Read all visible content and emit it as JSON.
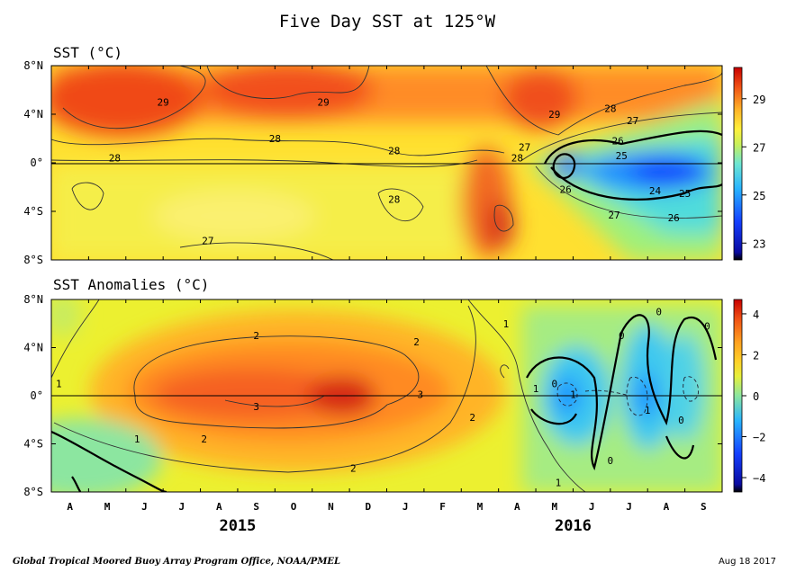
{
  "chart_data": {
    "title": "Five Day SST at 125°W",
    "credit": "Global Tropical Moored Buoy Array Program Office, NOAA/PMEL",
    "date": "Aug 18 2017",
    "x_axis": {
      "months": [
        "A",
        "M",
        "J",
        "J",
        "A",
        "S",
        "O",
        "N",
        "D",
        "J",
        "F",
        "M",
        "A",
        "M",
        "J",
        "J",
        "A",
        "S"
      ],
      "years": [
        {
          "label": "2015",
          "month_index": 4.5
        },
        {
          "label": "2016",
          "month_index": 13.5
        }
      ],
      "range": [
        "2015-04",
        "2016-09"
      ]
    },
    "y_axis": {
      "ticks": [
        "8°N",
        "4°N",
        "0°",
        "4°S",
        "8°S"
      ],
      "values": [
        8,
        4,
        0,
        -4,
        -8
      ],
      "range": [
        -8,
        8
      ]
    },
    "panels": [
      {
        "type": "heatmap",
        "title": "SST (°C)",
        "colorbar": {
          "ticks": [
            "29",
            "27",
            "25",
            "23"
          ],
          "values": [
            29,
            27,
            25,
            23
          ],
          "range": [
            22.3,
            30.3
          ]
        },
        "contour_labels": [
          {
            "text": "29",
            "x": 3.0,
            "y": 5.0
          },
          {
            "text": "29",
            "x": 7.3,
            "y": 5.0
          },
          {
            "text": "29",
            "x": 13.5,
            "y": 4.0
          },
          {
            "text": "28",
            "x": 15.0,
            "y": 4.5
          },
          {
            "text": "27",
            "x": 15.6,
            "y": 3.5
          },
          {
            "text": "28",
            "x": 6.0,
            "y": 2.0
          },
          {
            "text": "28",
            "x": 1.7,
            "y": 0.4
          },
          {
            "text": "28",
            "x": 9.2,
            "y": 1.0
          },
          {
            "text": "28",
            "x": 12.5,
            "y": 0.4
          },
          {
            "text": "27",
            "x": 12.7,
            "y": 1.3
          },
          {
            "text": "26",
            "x": 15.2,
            "y": 1.8
          },
          {
            "text": "25",
            "x": 15.3,
            "y": 0.6
          },
          {
            "text": "26",
            "x": 13.8,
            "y": -2.2
          },
          {
            "text": "24",
            "x": 16.2,
            "y": -2.3
          },
          {
            "text": "25",
            "x": 17.0,
            "y": -2.5
          },
          {
            "text": "26",
            "x": 16.7,
            "y": -4.5
          },
          {
            "text": "27",
            "x": 15.1,
            "y": -4.3
          },
          {
            "text": "28",
            "x": 9.2,
            "y": -3.0
          },
          {
            "text": "27",
            "x": 4.2,
            "y": -6.4
          }
        ]
      },
      {
        "type": "heatmap",
        "title": "SST Anomalies (°C)",
        "colorbar": {
          "ticks": [
            "4",
            "2",
            "0",
            "−2",
            "−4"
          ],
          "values": [
            4,
            2,
            0,
            -2,
            -4
          ],
          "range": [
            -4.7,
            4.7
          ]
        },
        "contour_labels": [
          {
            "text": "1",
            "x": 0.2,
            "y": 1.0
          },
          {
            "text": "1",
            "x": 12.2,
            "y": 6.0
          },
          {
            "text": "2",
            "x": 5.5,
            "y": 5.0
          },
          {
            "text": "2",
            "x": 9.8,
            "y": 4.5
          },
          {
            "text": "3",
            "x": 5.5,
            "y": -0.9
          },
          {
            "text": "3",
            "x": 9.9,
            "y": 0.1
          },
          {
            "text": "2",
            "x": 11.3,
            "y": -1.8
          },
          {
            "text": "2",
            "x": 4.1,
            "y": -3.6
          },
          {
            "text": "1",
            "x": 2.3,
            "y": -3.6
          },
          {
            "text": "2",
            "x": 8.1,
            "y": -6.0
          },
          {
            "text": "1",
            "x": 13.6,
            "y": -7.2
          },
          {
            "text": "1",
            "x": 13.0,
            "y": 0.6
          },
          {
            "text": "0",
            "x": 13.5,
            "y": 1.0
          },
          {
            "text": "0",
            "x": 15.3,
            "y": 5.0
          },
          {
            "text": "0",
            "x": 16.3,
            "y": 7.0
          },
          {
            "text": "0",
            "x": 17.6,
            "y": 5.8
          },
          {
            "text": "0",
            "x": 15.0,
            "y": -5.4
          },
          {
            "text": "0",
            "x": 16.9,
            "y": -2.0
          },
          {
            "text": "1",
            "x": 14.0,
            "y": 0.1
          },
          {
            "text": "1",
            "x": 16.0,
            "y": -1.2
          }
        ]
      }
    ]
  }
}
